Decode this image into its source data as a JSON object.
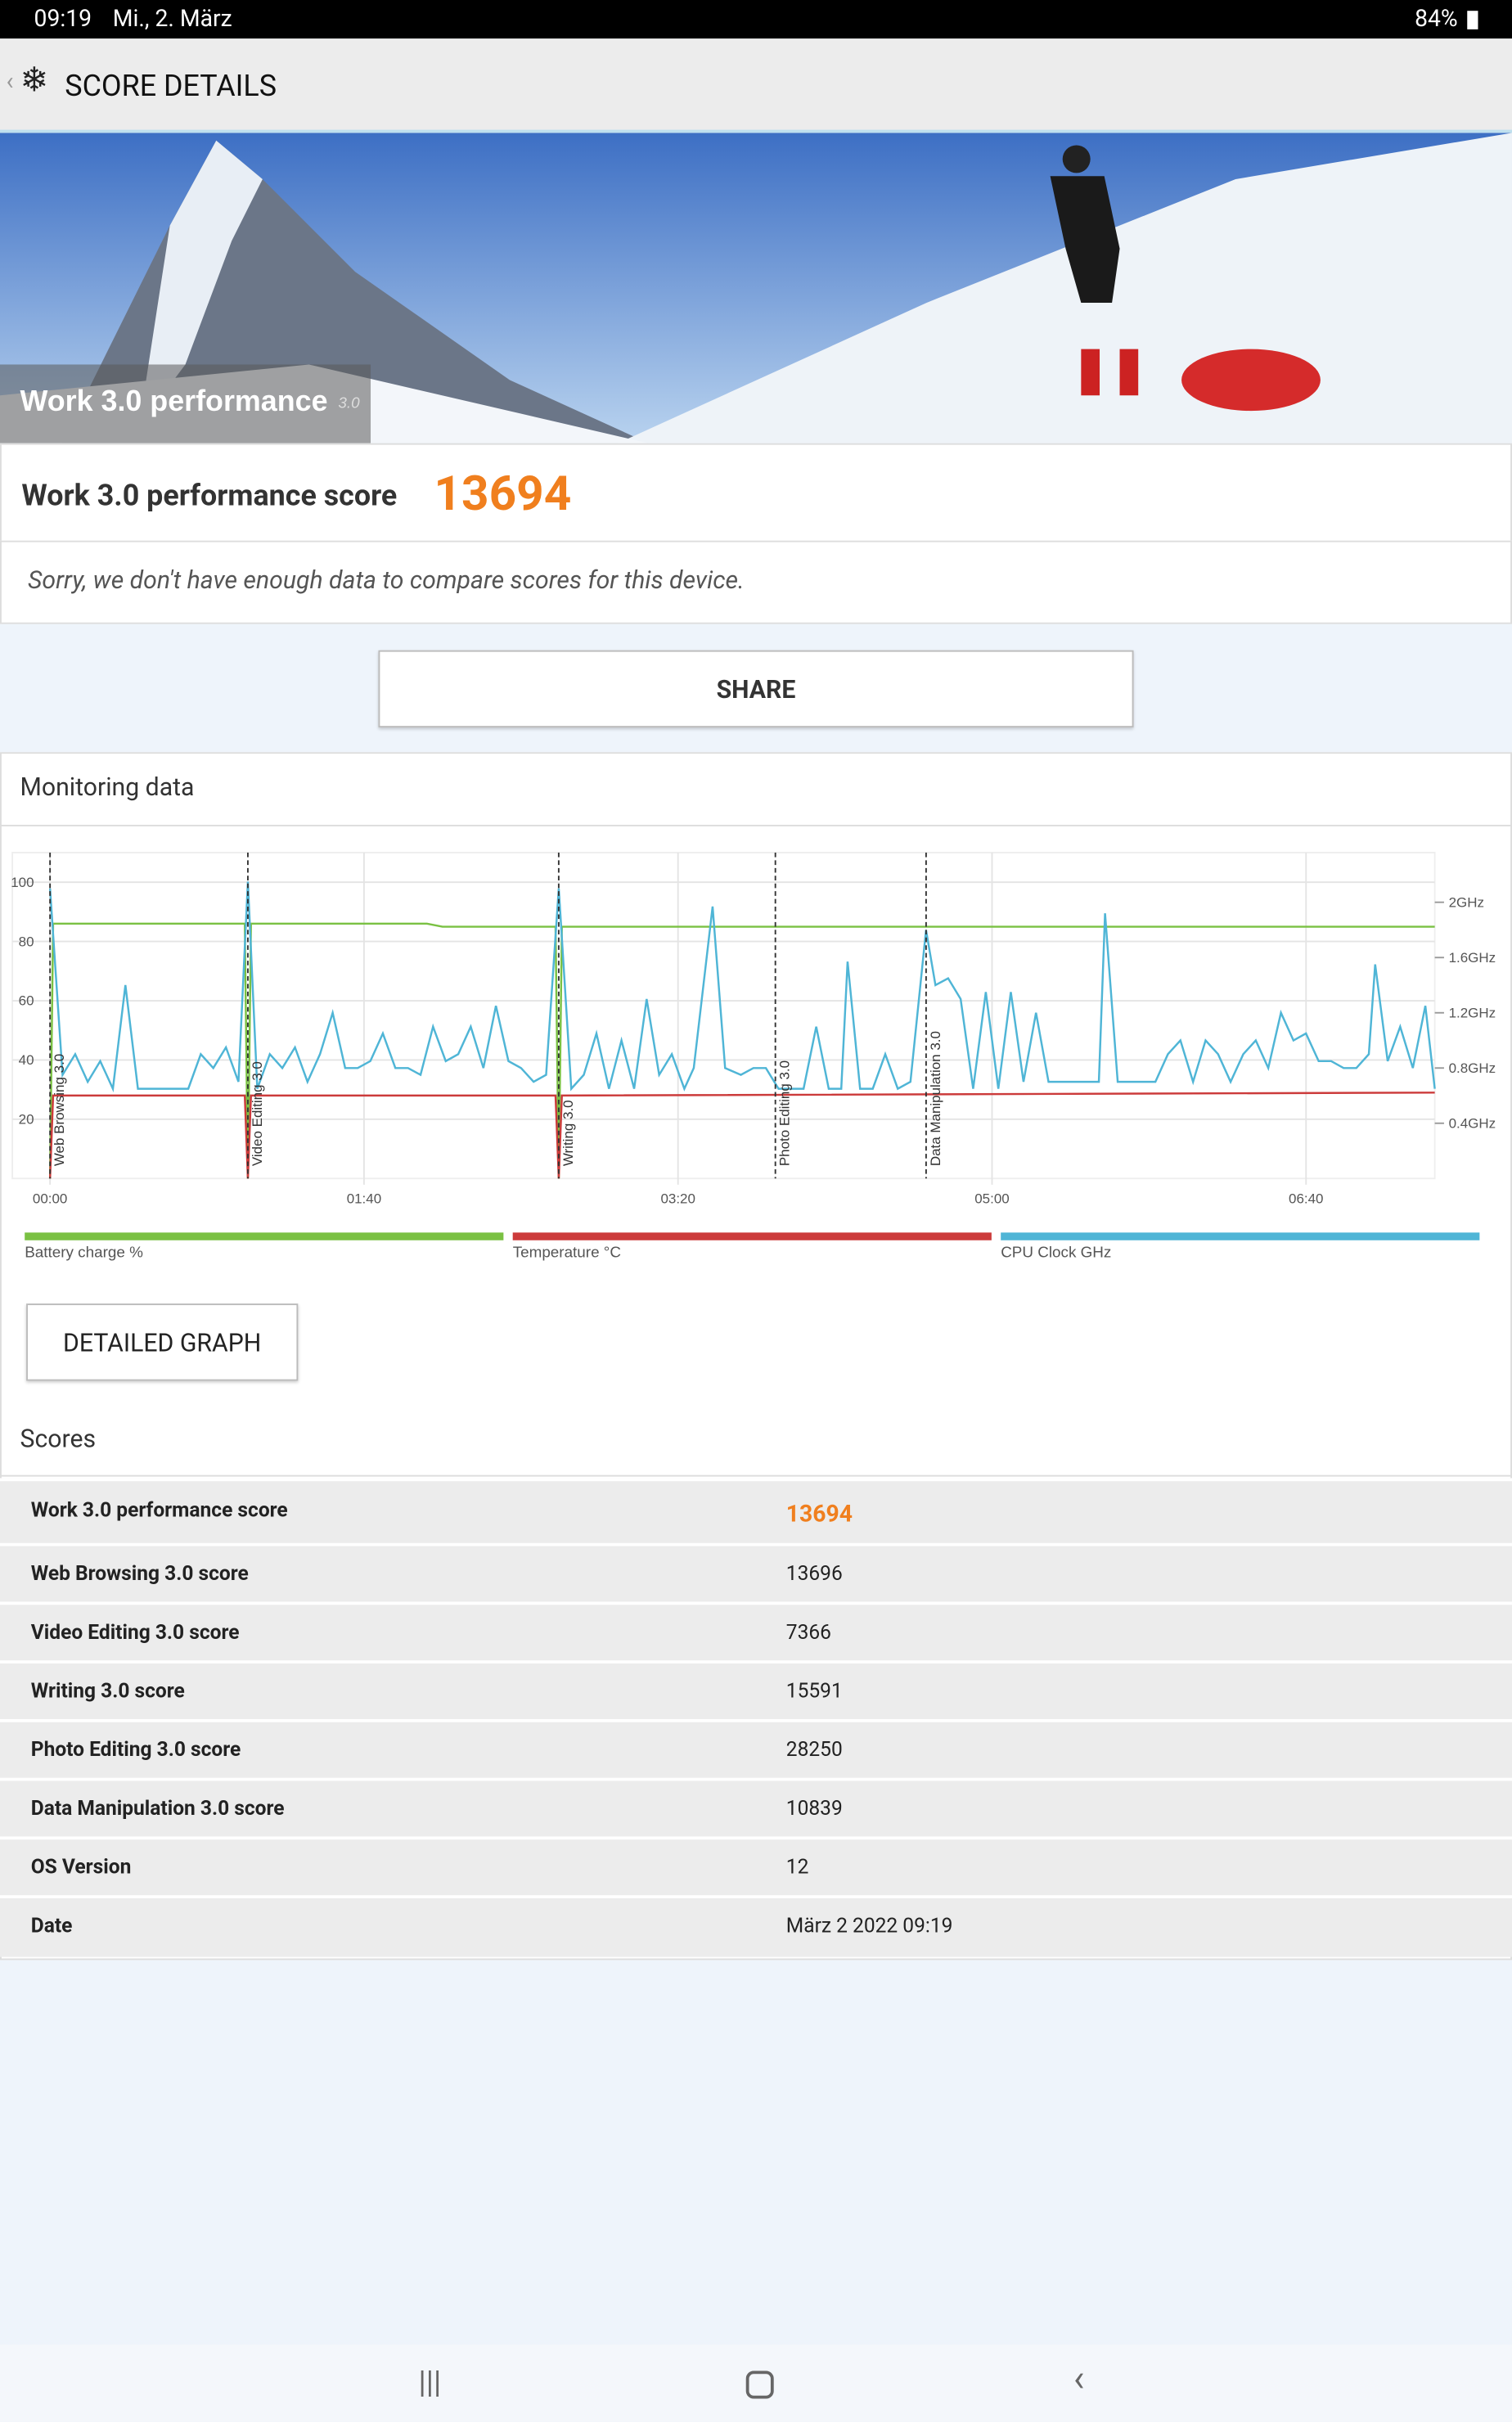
{
  "status_bar": {
    "time": "09:19",
    "date": "Mi., 2. März",
    "battery": "84%"
  },
  "header": {
    "title": "SCORE DETAILS"
  },
  "banner": {
    "title": "Work 3.0 performance",
    "version": "3.0"
  },
  "score": {
    "label": "Work 3.0 performance score",
    "value": 13694
  },
  "notice": "Sorry, we don't have enough data to compare scores for this device.",
  "share_button": "SHARE",
  "chart_data": {
    "type": "line",
    "title": "Monitoring data",
    "xlim": [
      -12,
      441
    ],
    "xticks": [
      {
        "value": 0,
        "label": "00:00"
      },
      {
        "value": 100,
        "label": "01:40"
      },
      {
        "value": 200,
        "label": "03:20"
      },
      {
        "value": 300,
        "label": "05:00"
      },
      {
        "value": 400,
        "label": "06:40"
      }
    ],
    "ylim": [
      0,
      110
    ],
    "yticks": [
      20,
      40,
      60,
      80,
      100
    ],
    "y2lim": [
      0,
      2.36
    ],
    "y2ticks": [
      {
        "value": 0.4,
        "label": "0.4GHz"
      },
      {
        "value": 0.8,
        "label": "0.8GHz"
      },
      {
        "value": 1.2,
        "label": "1.2GHz"
      },
      {
        "value": 1.6,
        "label": "1.6GHz"
      },
      {
        "value": 2,
        "label": "2GHz"
      }
    ],
    "grid": true,
    "markers": [
      {
        "x": 0,
        "label": "Web Browsing 3.0"
      },
      {
        "x": 63,
        "label": "Video Editing 3.0"
      },
      {
        "x": 162,
        "label": "Writing 3.0"
      },
      {
        "x": 231,
        "label": "Photo Editing 3.0"
      },
      {
        "x": 279,
        "label": "Data Manipulation 3.0"
      }
    ],
    "series": [
      {
        "name": "Battery charge %",
        "color": "#7ac143",
        "x": [
          0,
          1,
          62,
          63,
          64,
          120,
          125,
          161,
          162,
          163,
          441
        ],
        "values": [
          0,
          86,
          86,
          0,
          86,
          86,
          85,
          85,
          0,
          85,
          85
        ]
      },
      {
        "name": "Temperature °C",
        "color": "#cc3b3b",
        "x": [
          0,
          1,
          62,
          63,
          64,
          161,
          162,
          163,
          441
        ],
        "values": [
          0,
          28,
          28,
          0,
          28,
          28,
          0,
          28,
          29
        ]
      },
      {
        "name": "CPU Clock GHz",
        "color": "#4fb5d6",
        "axis": "y2",
        "x": [
          0,
          4,
          8,
          12,
          16,
          20,
          24,
          28,
          32,
          36,
          40,
          44,
          48,
          52,
          56,
          60,
          63,
          66,
          70,
          74,
          78,
          82,
          86,
          90,
          94,
          98,
          102,
          106,
          110,
          114,
          118,
          122,
          126,
          130,
          134,
          138,
          142,
          146,
          150,
          154,
          158,
          162,
          166,
          170,
          174,
          178,
          182,
          186,
          190,
          194,
          198,
          202,
          205,
          211,
          215,
          220,
          224,
          228,
          232,
          236,
          240,
          244,
          248,
          252,
          254,
          258,
          262,
          266,
          270,
          274,
          279,
          282,
          286,
          290,
          294,
          298,
          302,
          306,
          310,
          314,
          318,
          322,
          326,
          334,
          336,
          340,
          344,
          348,
          352,
          356,
          360,
          364,
          368,
          372,
          376,
          380,
          384,
          388,
          392,
          396,
          400,
          404,
          408,
          412,
          416,
          420,
          422,
          426,
          430,
          434,
          438,
          441
        ],
        "values": [
          2.1,
          0.75,
          0.9,
          0.7,
          0.85,
          0.65,
          1.4,
          0.65,
          0.65,
          0.65,
          0.65,
          0.65,
          0.9,
          0.8,
          0.95,
          0.7,
          2.15,
          0.65,
          0.9,
          0.8,
          0.95,
          0.7,
          0.9,
          1.2,
          0.8,
          0.8,
          0.85,
          1.05,
          0.8,
          0.8,
          0.75,
          1.1,
          0.85,
          0.9,
          1.1,
          0.8,
          1.25,
          0.85,
          0.8,
          0.7,
          0.75,
          2.1,
          0.65,
          0.75,
          1.05,
          0.65,
          1.0,
          0.65,
          1.3,
          0.75,
          0.9,
          0.65,
          0.8,
          1.97,
          0.8,
          0.75,
          0.8,
          0.8,
          0.65,
          0.65,
          0.65,
          1.1,
          0.65,
          0.65,
          1.57,
          0.65,
          0.65,
          0.9,
          0.65,
          0.7,
          1.8,
          1.4,
          1.45,
          1.3,
          0.65,
          1.35,
          0.65,
          1.35,
          0.7,
          1.2,
          0.7,
          0.7,
          0.7,
          0.7,
          1.92,
          0.7,
          0.7,
          0.7,
          0.7,
          0.9,
          1.0,
          0.7,
          1.0,
          0.9,
          0.7,
          0.9,
          1.0,
          0.8,
          1.2,
          1.0,
          1.05,
          0.85,
          0.85,
          0.8,
          0.8,
          0.9,
          1.55,
          0.85,
          1.1,
          0.8,
          1.25,
          0.65
        ]
      }
    ]
  },
  "detailed_graph_button": "DETAILED GRAPH",
  "scores": {
    "title": "Scores",
    "rows": [
      [
        "Work 3.0 performance score",
        13694
      ],
      [
        "Web Browsing 3.0 score",
        13696
      ],
      [
        "Video Editing 3.0 score",
        7366
      ],
      [
        "Writing 3.0 score",
        15591
      ],
      [
        "Photo Editing 3.0 score",
        28250
      ],
      [
        "Data Manipulation 3.0 score",
        10839
      ],
      [
        "OS Version",
        12
      ],
      [
        "Date",
        "März 2 2022 09:19"
      ]
    ]
  }
}
